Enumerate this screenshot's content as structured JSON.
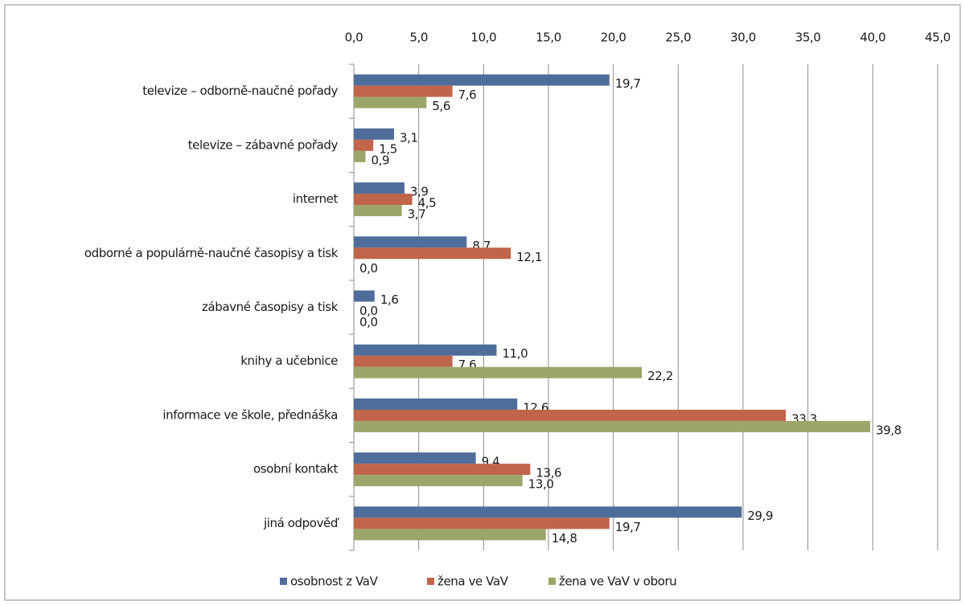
{
  "chart_data": {
    "type": "bar",
    "orientation": "horizontal",
    "categories": [
      "televize – odborně-naučné pořady",
      "televize – zábavné pořady",
      "internet",
      "odborné a populárně-naučné časopisy a tisk",
      "zábavné časopisy a tisk",
      "knihy a učebnice",
      "informace ve škole, přednáška",
      "osobní kontakt",
      "jiná odpověď"
    ],
    "series": [
      {
        "name": "osobnost z VaV",
        "color": "#4f6d9b",
        "values": [
          19.7,
          3.1,
          3.9,
          8.7,
          1.6,
          11.0,
          12.6,
          9.4,
          29.9
        ],
        "value_labels": [
          "19,7",
          "3,1",
          "3,9",
          "8,7",
          "1,6",
          "11,0",
          "12,6",
          "9,4",
          "29,9"
        ]
      },
      {
        "name": "žena ve VaV",
        "color": "#c0644a",
        "values": [
          7.6,
          1.5,
          4.5,
          12.1,
          0.0,
          7.6,
          33.3,
          13.6,
          19.7
        ],
        "value_labels": [
          "7,6",
          "1,5",
          "4,5",
          "12,1",
          "0,0",
          "7,6",
          "33,3",
          "13,6",
          "19,7"
        ]
      },
      {
        "name": "žena ve VaV v oboru",
        "color": "#9ca66a",
        "values": [
          5.6,
          0.9,
          3.7,
          0.0,
          0.0,
          22.2,
          39.8,
          13.0,
          14.8
        ],
        "value_labels": [
          "5,6",
          "0,9",
          "3,7",
          "0,0",
          "0,0",
          "22,2",
          "39,8",
          "13,0",
          "14,8"
        ]
      }
    ],
    "xlim": [
      0,
      45
    ],
    "xticks": [
      {
        "value": 0,
        "label": "0,0"
      },
      {
        "value": 5,
        "label": "5,0"
      },
      {
        "value": 10,
        "label": "10,0"
      },
      {
        "value": 15,
        "label": "15,0"
      },
      {
        "value": 20,
        "label": "20,0"
      },
      {
        "value": 25,
        "label": "25,0"
      },
      {
        "value": 30,
        "label": "30,0"
      },
      {
        "value": 35,
        "label": "35,0"
      },
      {
        "value": 40,
        "label": "40,0"
      },
      {
        "value": 45,
        "label": "45,0"
      }
    ],
    "grid": true,
    "legend": "bottom"
  }
}
